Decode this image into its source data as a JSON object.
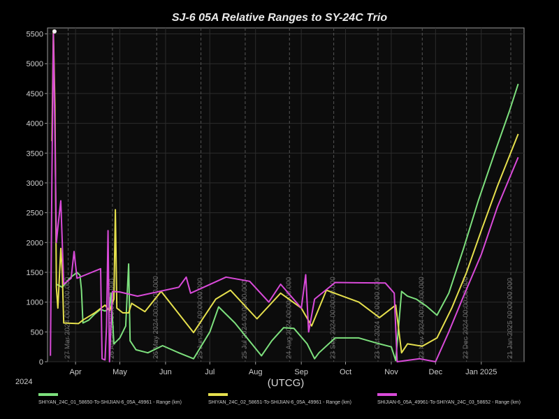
{
  "chart_data": {
    "type": "line",
    "title": "SJ-6 05A Relative Ranges to SY-24C Trio",
    "xlabel": "(UTCG)",
    "year_label": "2024",
    "ylabel": "",
    "ylim": [
      0,
      5600
    ],
    "y_ticks": [
      0,
      500,
      1000,
      1500,
      2000,
      2500,
      3000,
      3500,
      4000,
      4500,
      5000,
      5500
    ],
    "xlim": [
      "2024-03-13",
      "2025-01-30"
    ],
    "x_ticks": [
      {
        "date": "2024-04-01",
        "label": "Apr"
      },
      {
        "date": "2024-05-01",
        "label": "May"
      },
      {
        "date": "2024-06-01",
        "label": "Jun"
      },
      {
        "date": "2024-07-01",
        "label": "Jul"
      },
      {
        "date": "2024-08-01",
        "label": "Aug"
      },
      {
        "date": "2024-09-01",
        "label": "Sep"
      },
      {
        "date": "2024-10-01",
        "label": "Oct"
      },
      {
        "date": "2024-11-01",
        "label": "Nov"
      },
      {
        "date": "2024-12-01",
        "label": "Dec"
      },
      {
        "date": "2025-01-01",
        "label": "Jan 2025"
      }
    ],
    "event_lines": [
      {
        "date": "2024-03-27",
        "label": "27 Mar 2024 00:00:00.000"
      },
      {
        "date": "2024-04-26",
        "label": "26 Apr 2024 00:00:00.000"
      },
      {
        "date": "2024-05-26",
        "label": "26 May 2024 00:00:00.000"
      },
      {
        "date": "2024-06-25",
        "label": "25 Jun 2024 00:00:00.000"
      },
      {
        "date": "2024-07-25",
        "label": "25 Jul 2024 00:00:00.000"
      },
      {
        "date": "2024-08-24",
        "label": "24 Aug 2024 00:00:00.000"
      },
      {
        "date": "2024-09-23",
        "label": "23 Sep 2024 00:00:00.000"
      },
      {
        "date": "2024-10-23",
        "label": "23 Oct 2024 00:00:00.000"
      },
      {
        "date": "2024-11-22",
        "label": "22 Nov 2024 00:00:00.000"
      },
      {
        "date": "2024-12-22",
        "label": "22 Dec 2024 00:00:00.000"
      },
      {
        "date": "2025-01-21",
        "label": "21 Jan 2025 00:00:00.000"
      }
    ],
    "grid": true,
    "legend_position": "bottom",
    "series": [
      {
        "name": "SHIYAN_24C_01_58650-To-SHIJIAN-6_05A_49961 - Range (km)",
        "color": "#7de07d",
        "points": [
          [
            "2024-03-19",
            1300
          ],
          [
            "2024-03-23",
            1250
          ],
          [
            "2024-03-28",
            1400
          ],
          [
            "2024-04-02",
            1500
          ],
          [
            "2024-04-04",
            1450
          ],
          [
            "2024-04-05",
            1200
          ],
          [
            "2024-04-06",
            650
          ],
          [
            "2024-04-10",
            700
          ],
          [
            "2024-04-14",
            800
          ],
          [
            "2024-04-18",
            880
          ],
          [
            "2024-04-21",
            850
          ],
          [
            "2024-04-24",
            900
          ],
          [
            "2024-04-25",
            1150
          ],
          [
            "2024-04-27",
            300
          ],
          [
            "2024-05-01",
            400
          ],
          [
            "2024-05-05",
            600
          ],
          [
            "2024-05-07",
            1640
          ],
          [
            "2024-05-08",
            350
          ],
          [
            "2024-05-12",
            200
          ],
          [
            "2024-05-20",
            150
          ],
          [
            "2024-05-30",
            270
          ],
          [
            "2024-06-10",
            150
          ],
          [
            "2024-06-20",
            50
          ],
          [
            "2024-07-01",
            500
          ],
          [
            "2024-07-07",
            920
          ],
          [
            "2024-07-18",
            650
          ],
          [
            "2024-08-05",
            100
          ],
          [
            "2024-08-12",
            350
          ],
          [
            "2024-08-20",
            570
          ],
          [
            "2024-08-27",
            560
          ],
          [
            "2024-09-05",
            300
          ],
          [
            "2024-09-10",
            50
          ],
          [
            "2024-09-13",
            150
          ],
          [
            "2024-09-24",
            400
          ],
          [
            "2024-10-10",
            400
          ],
          [
            "2024-10-24",
            300
          ],
          [
            "2024-11-01",
            250
          ],
          [
            "2024-11-04",
            20
          ],
          [
            "2024-11-08",
            1180
          ],
          [
            "2024-11-12",
            1100
          ],
          [
            "2024-11-18",
            1050
          ],
          [
            "2024-11-25",
            930
          ],
          [
            "2024-12-02",
            780
          ],
          [
            "2024-12-10",
            1150
          ],
          [
            "2024-12-20",
            1900
          ],
          [
            "2024-12-30",
            2700
          ],
          [
            "2025-01-10",
            3500
          ],
          [
            "2025-01-20",
            4200
          ],
          [
            "2025-01-26",
            4660
          ]
        ]
      },
      {
        "name": "SHIYAN_24C_02_58651-To-SHIJIAN-6_05A_49961 - Range (km)",
        "color": "#e6e04d",
        "points": [
          [
            "2024-03-16",
            3700
          ],
          [
            "2024-03-17",
            5560
          ],
          [
            "2024-03-18",
            4300
          ],
          [
            "2024-03-19",
            1250
          ],
          [
            "2024-03-20",
            900
          ],
          [
            "2024-03-22",
            1900
          ],
          [
            "2024-03-23",
            1500
          ],
          [
            "2024-03-24",
            650
          ],
          [
            "2024-04-03",
            640
          ],
          [
            "2024-04-06",
            700
          ],
          [
            "2024-04-14",
            820
          ],
          [
            "2024-04-21",
            950
          ],
          [
            "2024-04-24",
            850
          ],
          [
            "2024-04-27",
            1050
          ],
          [
            "2024-04-28",
            2550
          ],
          [
            "2024-04-29",
            900
          ],
          [
            "2024-05-03",
            820
          ],
          [
            "2024-05-07",
            820
          ],
          [
            "2024-05-09",
            980
          ],
          [
            "2024-05-18",
            840
          ],
          [
            "2024-05-29",
            1180
          ],
          [
            "2024-06-20",
            490
          ],
          [
            "2024-07-05",
            1050
          ],
          [
            "2024-07-15",
            1200
          ],
          [
            "2024-08-02",
            720
          ],
          [
            "2024-08-18",
            1150
          ],
          [
            "2024-09-01",
            900
          ],
          [
            "2024-09-08",
            600
          ],
          [
            "2024-09-18",
            1200
          ],
          [
            "2024-10-10",
            1000
          ],
          [
            "2024-10-24",
            740
          ],
          [
            "2024-11-04",
            950
          ],
          [
            "2024-11-08",
            150
          ],
          [
            "2024-11-12",
            300
          ],
          [
            "2024-11-22",
            260
          ],
          [
            "2024-12-02",
            400
          ],
          [
            "2024-12-12",
            900
          ],
          [
            "2024-12-22",
            1500
          ],
          [
            "2025-01-01",
            2200
          ],
          [
            "2025-01-12",
            2950
          ],
          [
            "2025-01-26",
            3820
          ]
        ]
      },
      {
        "name": "SHIJIAN-6_05A_49961-To-SHIYAN_24C_03_58652 - Range (km)",
        "color": "#d94ad9",
        "points": [
          [
            "2024-03-15",
            100
          ],
          [
            "2024-03-16",
            3100
          ],
          [
            "2024-03-17",
            5500
          ],
          [
            "2024-03-18",
            3800
          ],
          [
            "2024-03-19",
            2000
          ],
          [
            "2024-03-20",
            2250
          ],
          [
            "2024-03-22",
            2700
          ],
          [
            "2024-03-24",
            1300
          ],
          [
            "2024-03-29",
            1400
          ],
          [
            "2024-03-31",
            1850
          ],
          [
            "2024-04-02",
            1400
          ],
          [
            "2024-04-18",
            1560
          ],
          [
            "2024-04-19",
            50
          ],
          [
            "2024-04-21",
            30
          ],
          [
            "2024-04-22",
            600
          ],
          [
            "2024-04-23",
            2200
          ],
          [
            "2024-04-24",
            0
          ],
          [
            "2024-04-26",
            1180
          ],
          [
            "2024-05-01",
            1170
          ],
          [
            "2024-05-13",
            1100
          ],
          [
            "2024-06-10",
            1250
          ],
          [
            "2024-06-15",
            1420
          ],
          [
            "2024-06-18",
            1150
          ],
          [
            "2024-07-12",
            1420
          ],
          [
            "2024-07-28",
            1350
          ],
          [
            "2024-08-10",
            1000
          ],
          [
            "2024-08-18",
            1300
          ],
          [
            "2024-09-01",
            900
          ],
          [
            "2024-09-04",
            1460
          ],
          [
            "2024-09-06",
            500
          ],
          [
            "2024-09-10",
            1050
          ],
          [
            "2024-09-24",
            1330
          ],
          [
            "2024-10-28",
            1320
          ],
          [
            "2024-11-03",
            1150
          ],
          [
            "2024-11-05",
            0
          ],
          [
            "2024-11-20",
            50
          ],
          [
            "2024-12-01",
            0
          ],
          [
            "2024-12-10",
            500
          ],
          [
            "2024-12-20",
            1100
          ],
          [
            "2025-01-01",
            1800
          ],
          [
            "2025-01-12",
            2600
          ],
          [
            "2025-01-26",
            3430
          ]
        ]
      }
    ]
  }
}
